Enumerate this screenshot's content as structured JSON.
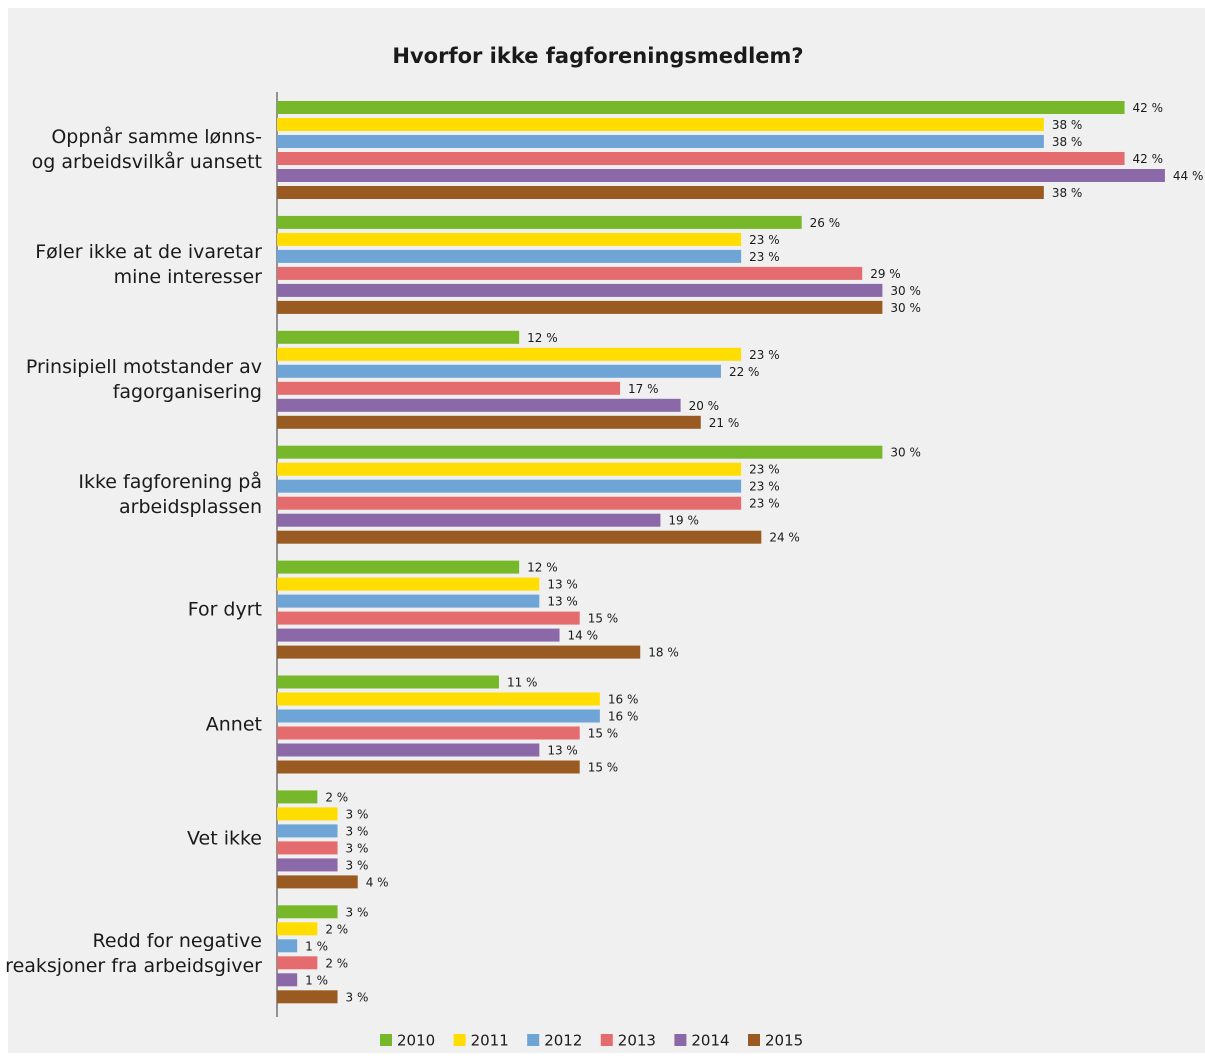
{
  "chart_data": {
    "type": "bar",
    "orientation": "horizontal",
    "title": "Hvorfor ikke fagforeningsmedlem?",
    "categories": [
      "Oppnår samme lønns-\nog arbeidsvilkår uansett",
      "Føler ikke at de ivaretar\nmine interesser",
      "Prinsipiell motstander av\nfagorganisering",
      "Ikke fagforening på\narbeidsplassen",
      "For dyrt",
      "Annet",
      "Vet ikke",
      "Redd for negative\nreaksjoner fra arbeidsgiver"
    ],
    "series": [
      {
        "name": "2010",
        "color": "#77b82a",
        "values": [
          42,
          26,
          12,
          30,
          12,
          11,
          2,
          3
        ],
        "value_labels": [
          "42 %",
          "26 %",
          "12 %",
          "30 %",
          "12 %",
          "11 %",
          "2 %",
          "3 %"
        ]
      },
      {
        "name": "2011",
        "color": "#ffdd00",
        "values": [
          38,
          23,
          23,
          23,
          13,
          16,
          3,
          2
        ],
        "value_labels": [
          "38 %",
          "23 %",
          "23 %",
          "23 %",
          "13 %",
          "16 %",
          "3 %",
          "2 %"
        ]
      },
      {
        "name": "2012",
        "color": "#6fa5d6",
        "values": [
          38,
          23,
          22,
          23,
          13,
          16,
          3,
          1
        ],
        "value_labels": [
          "38 %",
          "23 %",
          "22 %",
          "23 %",
          "13 %",
          "16 %",
          "3 %",
          "1 %"
        ]
      },
      {
        "name": "2013",
        "color": "#e46c6e",
        "values": [
          42,
          29,
          17,
          23,
          15,
          15,
          3,
          2
        ],
        "value_labels": [
          "42 %",
          "29 %",
          "17 %",
          "23 %",
          "15 %",
          "15 %",
          "3 %",
          "2 %"
        ]
      },
      {
        "name": "2014",
        "color": "#8b68a8",
        "values": [
          44,
          30,
          20,
          19,
          14,
          13,
          3,
          1
        ],
        "value_labels": [
          "44 %",
          "30 %",
          "20 %",
          "19 %",
          "14 %",
          "13 %",
          "3 %",
          "1 %"
        ]
      },
      {
        "name": "2015",
        "color": "#9a5b22",
        "values": [
          38,
          30,
          21,
          24,
          18,
          15,
          4,
          3
        ],
        "value_labels": [
          "38 %",
          "30 %",
          "21 %",
          "24 %",
          "18 %",
          "15 %",
          "4 %",
          "3 %"
        ]
      }
    ],
    "legend": "bottom"
  }
}
